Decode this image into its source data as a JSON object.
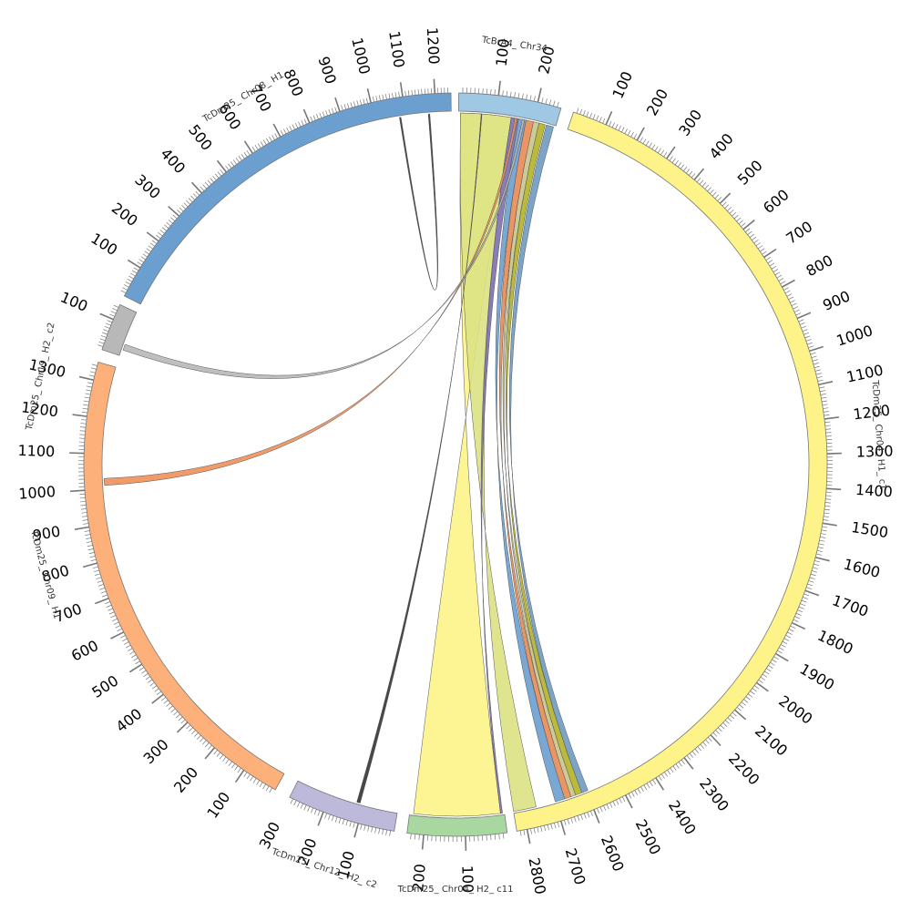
{
  "chart_data": {
    "type": "chord",
    "segments": [
      {
        "id": "brA4",
        "label": "TcBrA4_ Chr34",
        "color": "#9ec8e3",
        "length": 260,
        "ticks": [
          100,
          200
        ]
      },
      {
        "id": "d04h1",
        "label": "TcDm25_ Chr04_ H1_ c1",
        "color": "#fdf388",
        "length": 2830,
        "ticks": [
          100,
          200,
          300,
          400,
          500,
          600,
          700,
          800,
          900,
          1000,
          1100,
          1200,
          1300,
          1400,
          1500,
          1600,
          1700,
          1800,
          1900,
          2000,
          2100,
          2200,
          2300,
          2400,
          2500,
          2600,
          2700,
          2800
        ]
      },
      {
        "id": "d04h2",
        "label": "TcDm25_ Chr04_ H2_ c11",
        "color": "#a8d8a0",
        "length": 240,
        "ticks": [
          100,
          200
        ]
      },
      {
        "id": "d12",
        "label": "TcDm25_ Chr12_ H2_ c2",
        "color": "#bdb9da",
        "length": 300,
        "ticks": [
          100,
          200,
          300
        ]
      },
      {
        "id": "d09",
        "label": "TcDm25_ Chr09_ H1",
        "color": "#fdb07a",
        "length": 1350,
        "ticks": [
          100,
          200,
          300,
          400,
          500,
          600,
          700,
          800,
          900,
          1000,
          1100,
          1200,
          1300
        ]
      },
      {
        "id": "d19",
        "label": "TcDm25_ Chr19_ H2_ c2",
        "color": "#b8b8b8",
        "length": 150,
        "ticks": [
          100
        ]
      },
      {
        "id": "d08",
        "label": "TcDm25_ Chr08_ H1",
        "color": "#6a9fcf",
        "length": 1250,
        "ticks": [
          100,
          200,
          300,
          400,
          500,
          600,
          700,
          800,
          900,
          1000,
          1100,
          1200
        ]
      }
    ],
    "links": [
      {
        "a": [
          "brA4",
          5,
          140
        ],
        "b": [
          "d04h2",
          230,
          10
        ],
        "color": "#fdf388"
      },
      {
        "a": [
          "brA4",
          5,
          140
        ],
        "b": [
          "d04h1",
          2830,
          2760
        ],
        "color": "#dce282"
      },
      {
        "a": [
          "brA4",
          140,
          160
        ],
        "b": [
          "d04h2",
          10,
          5
        ],
        "color": "#7b6fae"
      },
      {
        "a": [
          "brA4",
          160,
          180
        ],
        "b": [
          "d04h1",
          2700,
          2670
        ],
        "color": "#6a9fcf"
      },
      {
        "a": [
          "brA4",
          180,
          200
        ],
        "b": [
          "d04h1",
          2670,
          2650
        ],
        "color": "#e88a52"
      },
      {
        "a": [
          "brA4",
          200,
          215
        ],
        "b": [
          "d04h1",
          2650,
          2635
        ],
        "color": "#c9c48a"
      },
      {
        "a": [
          "brA4",
          215,
          232
        ],
        "b": [
          "d04h1",
          2635,
          2615
        ],
        "color": "#b3b328"
      },
      {
        "a": [
          "brA4",
          235,
          255
        ],
        "b": [
          "d04h1",
          2615,
          2595
        ],
        "color": "#6e9ac0"
      },
      {
        "a": [
          "brA4",
          60,
          62
        ],
        "b": [
          "d12",
          120,
          110
        ],
        "color": "#333333"
      },
      {
        "a": [
          "brA4",
          150,
          156
        ],
        "b": [
          "d09",
          1030,
          1010
        ],
        "color": "#f0905a"
      },
      {
        "a": [
          "brA4",
          170,
          176
        ],
        "b": [
          "d19",
          40,
          20
        ],
        "color": "#b8b8b8"
      },
      {
        "a": [
          "d08",
          1080,
          1085
        ],
        "b": [
          "d08",
          1175,
          1180
        ],
        "color": "#333333"
      }
    ]
  }
}
